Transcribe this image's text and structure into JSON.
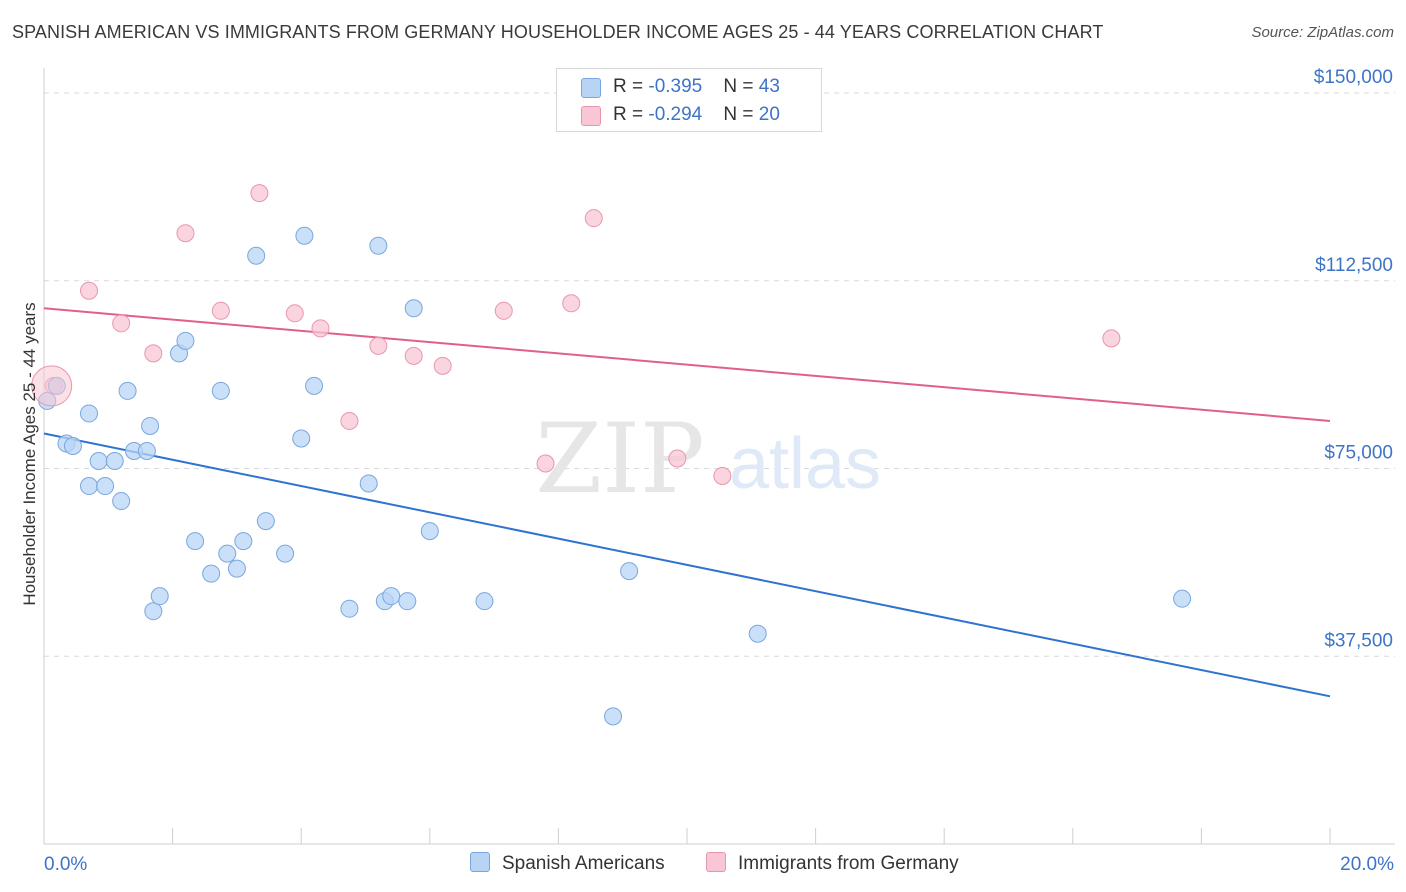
{
  "title": "SPANISH AMERICAN VS IMMIGRANTS FROM GERMANY HOUSEHOLDER INCOME AGES 25 - 44 YEARS CORRELATION CHART",
  "source": "Source: ZipAtlas.com",
  "watermark": {
    "zip": "ZIP",
    "atlas": "atlas"
  },
  "legend": {
    "series1": {
      "r_label": "R = ",
      "r_value": "-0.395",
      "n_label": "N = ",
      "n_value": "43"
    },
    "series2": {
      "r_label": "R = ",
      "r_value": "-0.294",
      "n_label": "N = ",
      "n_value": "20"
    }
  },
  "colors": {
    "blue_fill": "#b8d4f5",
    "blue_stroke": "#7aa7de",
    "blue_line": "#2f72d0",
    "pink_fill": "#f8c6d4",
    "pink_stroke": "#e896ae",
    "pink_line": "#e0608a",
    "tick_label": "#3d74c8",
    "grid": "#d9d9d9"
  },
  "chart_data": {
    "type": "scatter",
    "title": "SPANISH AMERICAN VS IMMIGRANTS FROM GERMANY HOUSEHOLDER INCOME AGES 25 - 44 YEARS CORRELATION CHART",
    "xlabel": "",
    "ylabel": "Householder Income Ages 25 - 44 years",
    "xlim": [
      0,
      20
    ],
    "ylim": [
      0,
      153000
    ],
    "x_tick_labels": [
      "0.0%",
      "20.0%"
    ],
    "y_ticks": [
      {
        "value": 37500,
        "label": "$37,500"
      },
      {
        "value": 75000,
        "label": "$75,000"
      },
      {
        "value": 112500,
        "label": "$112,500"
      },
      {
        "value": 150000,
        "label": "$150,000"
      }
    ],
    "series": [
      {
        "name": "Spanish Americans",
        "color": "#b8d4f5",
        "points": [
          [
            0.05,
            88500
          ],
          [
            0.2,
            91500
          ],
          [
            0.35,
            80000
          ],
          [
            0.45,
            79500
          ],
          [
            0.7,
            71500
          ],
          [
            0.7,
            86000
          ],
          [
            0.85,
            76500
          ],
          [
            0.95,
            71500
          ],
          [
            1.1,
            76500
          ],
          [
            1.2,
            68500
          ],
          [
            1.3,
            90500
          ],
          [
            1.4,
            78500
          ],
          [
            1.6,
            78500
          ],
          [
            1.65,
            83500
          ],
          [
            1.7,
            46500
          ],
          [
            1.8,
            49500
          ],
          [
            2.1,
            98000
          ],
          [
            2.2,
            100500
          ],
          [
            2.35,
            60500
          ],
          [
            2.6,
            54000
          ],
          [
            2.75,
            90500
          ],
          [
            2.85,
            58000
          ],
          [
            3.0,
            55000
          ],
          [
            3.1,
            60500
          ],
          [
            3.3,
            117500
          ],
          [
            3.45,
            64500
          ],
          [
            3.75,
            58000
          ],
          [
            4.0,
            81000
          ],
          [
            4.05,
            121500
          ],
          [
            4.2,
            91500
          ],
          [
            4.75,
            47000
          ],
          [
            5.05,
            72000
          ],
          [
            5.2,
            119500
          ],
          [
            5.3,
            48500
          ],
          [
            5.4,
            49500
          ],
          [
            5.65,
            48500
          ],
          [
            5.75,
            107000
          ],
          [
            6.0,
            62500
          ],
          [
            6.85,
            48500
          ],
          [
            8.85,
            25500
          ],
          [
            9.1,
            54500
          ],
          [
            11.1,
            42000
          ],
          [
            17.7,
            49000
          ]
        ]
      },
      {
        "name": "Immigrants from Germany",
        "color": "#f8c6d4",
        "points": [
          [
            0.15,
            91500
          ],
          [
            0.7,
            110500
          ],
          [
            1.2,
            104000
          ],
          [
            1.7,
            98000
          ],
          [
            2.2,
            122000
          ],
          [
            2.75,
            106500
          ],
          [
            3.35,
            130000
          ],
          [
            3.9,
            106000
          ],
          [
            4.3,
            103000
          ],
          [
            4.75,
            84500
          ],
          [
            5.2,
            99500
          ],
          [
            5.75,
            97500
          ],
          [
            6.2,
            95500
          ],
          [
            7.15,
            106500
          ],
          [
            7.8,
            76000
          ],
          [
            8.2,
            108000
          ],
          [
            8.55,
            125000
          ],
          [
            9.85,
            77000
          ],
          [
            10.55,
            73500
          ],
          [
            16.6,
            101000
          ]
        ]
      }
    ],
    "trendlines": [
      {
        "series": "Spanish Americans",
        "x": [
          0,
          20
        ],
        "y": [
          82000,
          29500
        ]
      },
      {
        "series": "Immigrants from Germany",
        "x": [
          0,
          20
        ],
        "y": [
          107000,
          84500
        ]
      }
    ]
  },
  "bottom_legend": [
    "Spanish Americans",
    "Immigrants from Germany"
  ]
}
